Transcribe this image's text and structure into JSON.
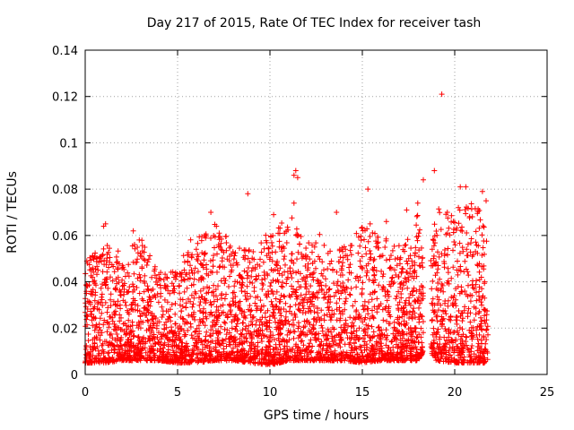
{
  "chart_data": {
    "type": "scatter",
    "title": "Day 217 of 2015, Rate Of TEC Index for receiver tash",
    "xlabel": "GPS time / hours",
    "ylabel": "ROTI / TECUs",
    "xlim": [
      0,
      25
    ],
    "ylim": [
      0,
      0.14
    ],
    "x_ticks": [
      0,
      5,
      10,
      15,
      20,
      25
    ],
    "y_ticks": [
      0,
      0.02,
      0.04,
      0.06,
      0.08,
      0.1,
      0.12,
      0.14
    ],
    "x_tick_labels": [
      "0",
      "5",
      "10",
      "15",
      "20",
      "25"
    ],
    "y_tick_labels": [
      "0",
      "0.02",
      "0.04",
      "0.06",
      "0.08",
      "0.1",
      "0.12",
      "0.14"
    ],
    "grid": true,
    "marker": "+",
    "color": "#ff0000",
    "profile": {
      "x": [
        0,
        1,
        2,
        3,
        4,
        5,
        6,
        7,
        8,
        9,
        10,
        11,
        12,
        13,
        14,
        15,
        16,
        17,
        18,
        18.5,
        19,
        20,
        21,
        21.8
      ],
      "y_low": [
        0.005,
        0.005,
        0.006,
        0.006,
        0.006,
        0.005,
        0.005,
        0.006,
        0.006,
        0.005,
        0.004,
        0.006,
        0.006,
        0.006,
        0.006,
        0.005,
        0.006,
        0.006,
        0.006,
        0.012,
        0.006,
        0.005,
        0.005,
        0.005
      ],
      "y_high": [
        0.05,
        0.055,
        0.05,
        0.06,
        0.045,
        0.045,
        0.06,
        0.065,
        0.055,
        0.055,
        0.06,
        0.07,
        0.055,
        0.06,
        0.055,
        0.065,
        0.06,
        0.055,
        0.07,
        0.035,
        0.075,
        0.07,
        0.075,
        0.065
      ]
    },
    "notable_points": [
      {
        "x": 19.3,
        "y": 0.121
      },
      {
        "x": 18.9,
        "y": 0.088
      },
      {
        "x": 11.4,
        "y": 0.088
      },
      {
        "x": 11.5,
        "y": 0.085
      },
      {
        "x": 11.3,
        "y": 0.086
      },
      {
        "x": 8.8,
        "y": 0.078
      },
      {
        "x": 11.3,
        "y": 0.074
      },
      {
        "x": 15.3,
        "y": 0.08
      },
      {
        "x": 20.3,
        "y": 0.081
      },
      {
        "x": 20.6,
        "y": 0.081
      },
      {
        "x": 21.5,
        "y": 0.079
      },
      {
        "x": 21.7,
        "y": 0.075
      },
      {
        "x": 18.3,
        "y": 0.084
      },
      {
        "x": 10.2,
        "y": 0.069
      },
      {
        "x": 13.6,
        "y": 0.07
      },
      {
        "x": 1.1,
        "y": 0.065
      },
      {
        "x": 1.0,
        "y": 0.064
      },
      {
        "x": 2.6,
        "y": 0.062
      },
      {
        "x": 6.8,
        "y": 0.07
      },
      {
        "x": 7.1,
        "y": 0.064
      },
      {
        "x": 16.3,
        "y": 0.066
      },
      {
        "x": 17.4,
        "y": 0.071
      },
      {
        "x": 19.6,
        "y": 0.07
      },
      {
        "x": 18.0,
        "y": 0.074
      },
      {
        "x": 20.2,
        "y": 0.072
      }
    ]
  }
}
